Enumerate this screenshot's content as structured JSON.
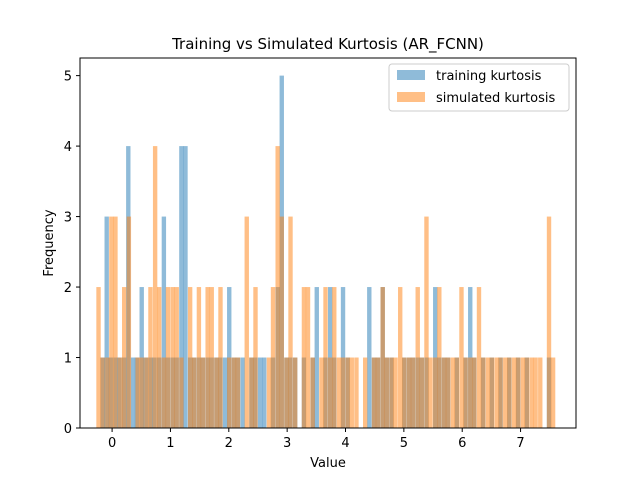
{
  "chart_data": {
    "type": "bar",
    "title": "Training vs Simulated Kurtosis (AR_FCNN)",
    "xlabel": "Value",
    "ylabel": "Frequency",
    "xlim": [
      -0.55,
      7.95
    ],
    "ylim": [
      0,
      5.25
    ],
    "xticks": [
      0,
      1,
      2,
      3,
      4,
      5,
      6,
      7
    ],
    "yticks": [
      0,
      1,
      2,
      3,
      4,
      5
    ],
    "grid": false,
    "legend_position": "top-right",
    "bin_width": 0.075,
    "series": [
      {
        "name": "training kurtosis",
        "color": "#1f77b4",
        "opacity": 0.5,
        "bins": [
          [
            -0.2,
            1
          ],
          [
            -0.13,
            3
          ],
          [
            -0.06,
            1
          ],
          [
            0.02,
            1
          ],
          [
            0.09,
            1
          ],
          [
            0.17,
            1
          ],
          [
            0.24,
            4
          ],
          [
            0.32,
            1
          ],
          [
            0.39,
            1
          ],
          [
            0.47,
            2
          ],
          [
            0.54,
            1
          ],
          [
            0.62,
            1
          ],
          [
            0.69,
            1
          ],
          [
            0.77,
            1
          ],
          [
            0.85,
            3
          ],
          [
            0.92,
            1
          ],
          [
            1.0,
            1
          ],
          [
            1.07,
            1
          ],
          [
            1.15,
            4
          ],
          [
            1.22,
            4
          ],
          [
            1.3,
            1
          ],
          [
            1.37,
            1
          ],
          [
            1.45,
            1
          ],
          [
            1.52,
            1
          ],
          [
            1.6,
            1
          ],
          [
            1.67,
            1
          ],
          [
            1.75,
            1
          ],
          [
            1.82,
            1
          ],
          [
            1.9,
            1
          ],
          [
            1.97,
            2
          ],
          [
            2.05,
            1
          ],
          [
            2.12,
            1
          ],
          [
            2.2,
            1
          ],
          [
            2.35,
            1
          ],
          [
            2.42,
            1
          ],
          [
            2.5,
            1
          ],
          [
            2.57,
            1
          ],
          [
            2.72,
            1
          ],
          [
            2.8,
            2
          ],
          [
            2.87,
            5
          ],
          [
            2.95,
            1
          ],
          [
            3.02,
            1
          ],
          [
            3.1,
            1
          ],
          [
            3.25,
            1
          ],
          [
            3.4,
            1
          ],
          [
            3.47,
            2
          ],
          [
            3.62,
            1
          ],
          [
            3.7,
            2
          ],
          [
            3.77,
            1
          ],
          [
            3.92,
            2
          ],
          [
            4.0,
            1
          ],
          [
            4.37,
            2
          ],
          [
            4.45,
            1
          ],
          [
            4.52,
            1
          ],
          [
            4.6,
            2
          ],
          [
            4.67,
            1
          ],
          [
            4.75,
            1
          ],
          [
            4.97,
            1
          ],
          [
            5.05,
            1
          ],
          [
            5.12,
            1
          ],
          [
            5.2,
            1
          ],
          [
            5.27,
            1
          ],
          [
            5.35,
            1
          ],
          [
            5.5,
            2
          ],
          [
            5.57,
            1
          ],
          [
            5.65,
            1
          ],
          [
            5.72,
            1
          ],
          [
            5.87,
            1
          ],
          [
            6.02,
            1
          ],
          [
            6.1,
            2
          ],
          [
            6.17,
            1
          ],
          [
            6.32,
            1
          ],
          [
            6.47,
            1
          ],
          [
            6.62,
            1
          ],
          [
            6.77,
            1
          ],
          [
            6.92,
            1
          ],
          [
            7.07,
            1
          ],
          [
            7.45,
            1
          ]
        ]
      },
      {
        "name": "simulated kurtosis",
        "color": "#ff7f0e",
        "opacity": 0.5,
        "bins": [
          [
            -0.27,
            2
          ],
          [
            -0.2,
            1
          ],
          [
            -0.12,
            1
          ],
          [
            -0.05,
            3
          ],
          [
            0.02,
            3
          ],
          [
            0.1,
            1
          ],
          [
            0.17,
            2
          ],
          [
            0.25,
            3
          ],
          [
            0.4,
            1
          ],
          [
            0.47,
            1
          ],
          [
            0.55,
            1
          ],
          [
            0.62,
            2
          ],
          [
            0.7,
            4
          ],
          [
            0.77,
            2
          ],
          [
            0.85,
            1
          ],
          [
            0.92,
            2
          ],
          [
            1.0,
            2
          ],
          [
            1.07,
            2
          ],
          [
            1.15,
            1
          ],
          [
            1.3,
            2
          ],
          [
            1.37,
            1
          ],
          [
            1.45,
            2
          ],
          [
            1.52,
            1
          ],
          [
            1.6,
            2
          ],
          [
            1.67,
            2
          ],
          [
            1.75,
            1
          ],
          [
            1.82,
            2
          ],
          [
            1.97,
            1
          ],
          [
            2.05,
            1
          ],
          [
            2.12,
            1
          ],
          [
            2.27,
            3
          ],
          [
            2.35,
            1
          ],
          [
            2.42,
            2
          ],
          [
            2.65,
            1
          ],
          [
            2.72,
            2
          ],
          [
            2.8,
            4
          ],
          [
            2.87,
            3
          ],
          [
            2.95,
            1
          ],
          [
            3.02,
            3
          ],
          [
            3.1,
            1
          ],
          [
            3.25,
            2
          ],
          [
            3.32,
            2
          ],
          [
            3.4,
            1
          ],
          [
            3.55,
            1
          ],
          [
            3.62,
            2
          ],
          [
            3.7,
            1
          ],
          [
            3.77,
            2
          ],
          [
            3.85,
            1
          ],
          [
            3.92,
            1
          ],
          [
            4.0,
            1
          ],
          [
            4.07,
            1
          ],
          [
            4.15,
            1
          ],
          [
            4.3,
            1
          ],
          [
            4.45,
            1
          ],
          [
            4.52,
            1
          ],
          [
            4.6,
            2
          ],
          [
            4.67,
            1
          ],
          [
            4.75,
            1
          ],
          [
            4.82,
            1
          ],
          [
            4.9,
            2
          ],
          [
            4.97,
            1
          ],
          [
            5.05,
            1
          ],
          [
            5.12,
            1
          ],
          [
            5.2,
            2
          ],
          [
            5.27,
            1
          ],
          [
            5.35,
            3
          ],
          [
            5.42,
            1
          ],
          [
            5.5,
            1
          ],
          [
            5.57,
            2
          ],
          [
            5.65,
            1
          ],
          [
            5.72,
            1
          ],
          [
            5.8,
            1
          ],
          [
            5.87,
            1
          ],
          [
            5.95,
            2
          ],
          [
            6.02,
            1
          ],
          [
            6.1,
            1
          ],
          [
            6.17,
            1
          ],
          [
            6.25,
            2
          ],
          [
            6.32,
            1
          ],
          [
            6.4,
            1
          ],
          [
            6.47,
            1
          ],
          [
            6.55,
            1
          ],
          [
            6.62,
            1
          ],
          [
            6.7,
            1
          ],
          [
            6.77,
            1
          ],
          [
            6.85,
            1
          ],
          [
            6.92,
            1
          ],
          [
            7.0,
            1
          ],
          [
            7.07,
            1
          ],
          [
            7.15,
            1
          ],
          [
            7.22,
            1
          ],
          [
            7.3,
            1
          ],
          [
            7.45,
            3
          ],
          [
            7.52,
            1
          ]
        ]
      }
    ]
  }
}
